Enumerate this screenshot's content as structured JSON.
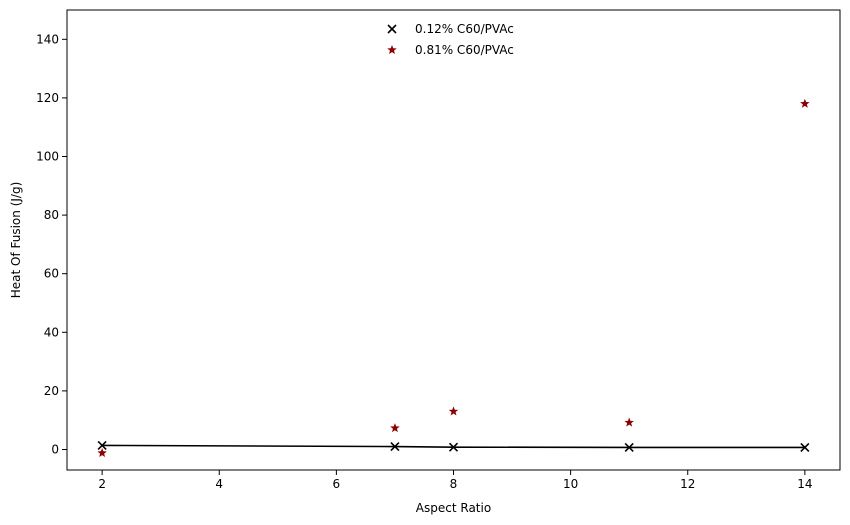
{
  "chart_data": {
    "type": "scatter",
    "title": "",
    "xlabel": "Aspect Ratio",
    "ylabel": "Heat Of Fusion (J/g)",
    "xlim": [
      1.4,
      14.6
    ],
    "ylim": [
      -7,
      150
    ],
    "xticks": [
      2,
      4,
      6,
      8,
      10,
      12,
      14
    ],
    "yticks": [
      0,
      20,
      40,
      60,
      80,
      100,
      120,
      140
    ],
    "grid": false,
    "legend_position": "top-center",
    "series": [
      {
        "name": "0.12% C60/PVAc",
        "marker": "x",
        "color": "#000000",
        "x": [
          2,
          7,
          8,
          11,
          14
        ],
        "y": [
          1.4,
          1.0,
          0.8,
          0.7,
          0.7
        ]
      },
      {
        "name": "0.81% C60/PVAc",
        "marker": "star",
        "color": "#8b0000",
        "x": [
          2,
          7,
          8,
          11,
          14
        ],
        "y": [
          -1.2,
          7.3,
          13.0,
          9.2,
          118.0
        ]
      }
    ],
    "fit_line": {
      "color": "#000000",
      "x": [
        2,
        7,
        8,
        11,
        14
      ],
      "y": [
        1.4,
        1.0,
        0.8,
        0.7,
        0.7
      ]
    }
  }
}
